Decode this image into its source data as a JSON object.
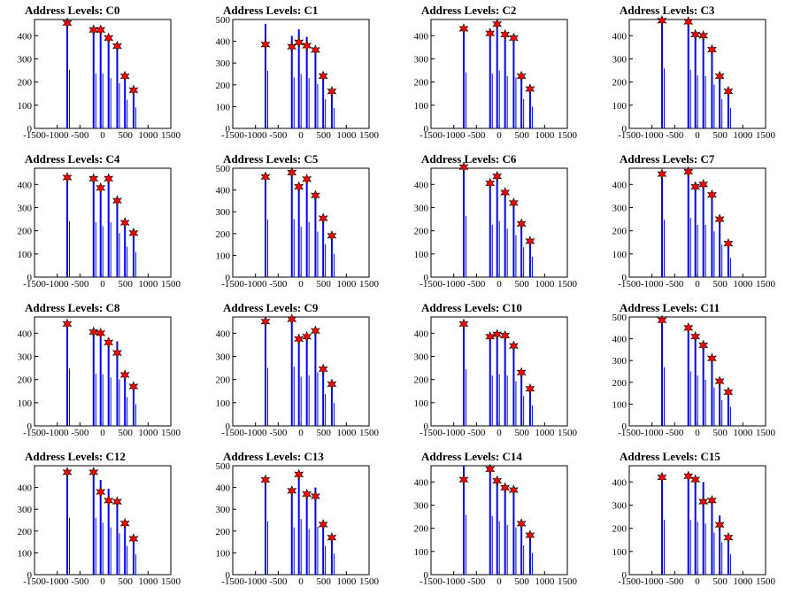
{
  "figure": {
    "bar_color": "#0000ff",
    "marker_color": "#ff0000",
    "x_ticks": [
      "-1500",
      "-1000",
      "-500",
      "0",
      "500",
      "1000",
      "1500"
    ],
    "xlim": [
      -1500,
      1500
    ]
  },
  "chart_data": [
    {
      "type": "bar",
      "title": "Address Levels: C0",
      "xlim": [
        -1500,
        1500
      ],
      "ylim": [
        0,
        470
      ],
      "y_ticks": [
        "0",
        "100",
        "200",
        "300",
        "400"
      ],
      "bars": [
        {
          "x": -780,
          "y": 460
        },
        {
          "x": -200,
          "y": 430
        },
        {
          "x": -45,
          "y": 430
        },
        {
          "x": 130,
          "y": 395
        },
        {
          "x": 320,
          "y": 355
        },
        {
          "x": 490,
          "y": 225
        },
        {
          "x": 680,
          "y": 165
        }
      ],
      "peaks": [
        {
          "x": -780,
          "y": 455
        },
        {
          "x": -200,
          "y": 425
        },
        {
          "x": -45,
          "y": 425
        },
        {
          "x": 130,
          "y": 390
        },
        {
          "x": 320,
          "y": 355
        },
        {
          "x": 490,
          "y": 225
        },
        {
          "x": 680,
          "y": 165
        }
      ]
    },
    {
      "type": "bar",
      "title": "Address Levels: C1",
      "xlim": [
        -1500,
        1500
      ],
      "ylim": [
        0,
        500
      ],
      "y_ticks": [
        "0",
        "100",
        "200",
        "300",
        "400",
        "500"
      ],
      "bars": [
        {
          "x": -780,
          "y": 480
        },
        {
          "x": -200,
          "y": 425
        },
        {
          "x": -45,
          "y": 455
        },
        {
          "x": 130,
          "y": 420
        },
        {
          "x": 320,
          "y": 370
        },
        {
          "x": 490,
          "y": 245
        },
        {
          "x": 680,
          "y": 170
        }
      ],
      "peaks": [
        {
          "x": -780,
          "y": 385
        },
        {
          "x": -200,
          "y": 375
        },
        {
          "x": -45,
          "y": 395
        },
        {
          "x": 130,
          "y": 380
        },
        {
          "x": 320,
          "y": 360
        },
        {
          "x": 490,
          "y": 240
        },
        {
          "x": 680,
          "y": 170
        }
      ]
    },
    {
      "type": "bar",
      "title": "Address Levels: C2",
      "xlim": [
        -1500,
        1500
      ],
      "ylim": [
        0,
        470
      ],
      "y_ticks": [
        "0",
        "100",
        "200",
        "300",
        "400"
      ],
      "bars": [
        {
          "x": -780,
          "y": 440
        },
        {
          "x": -200,
          "y": 430
        },
        {
          "x": -45,
          "y": 455
        },
        {
          "x": 130,
          "y": 410
        },
        {
          "x": 320,
          "y": 400
        },
        {
          "x": 490,
          "y": 230
        },
        {
          "x": 680,
          "y": 170
        }
      ],
      "peaks": [
        {
          "x": -780,
          "y": 430
        },
        {
          "x": -200,
          "y": 410
        },
        {
          "x": -45,
          "y": 450
        },
        {
          "x": 130,
          "y": 405
        },
        {
          "x": 320,
          "y": 390
        },
        {
          "x": 490,
          "y": 225
        },
        {
          "x": 680,
          "y": 170
        }
      ]
    },
    {
      "type": "bar",
      "title": "Address Levels: C3",
      "xlim": [
        -1500,
        1500
      ],
      "ylim": [
        0,
        470
      ],
      "y_ticks": [
        "0",
        "100",
        "200",
        "300",
        "400"
      ],
      "bars": [
        {
          "x": -780,
          "y": 470
        },
        {
          "x": -200,
          "y": 460
        },
        {
          "x": -45,
          "y": 415
        },
        {
          "x": 130,
          "y": 410
        },
        {
          "x": 320,
          "y": 345
        },
        {
          "x": 490,
          "y": 230
        },
        {
          "x": 680,
          "y": 160
        }
      ],
      "peaks": [
        {
          "x": -780,
          "y": 465
        },
        {
          "x": -200,
          "y": 460
        },
        {
          "x": -45,
          "y": 405
        },
        {
          "x": 130,
          "y": 400
        },
        {
          "x": 320,
          "y": 340
        },
        {
          "x": 490,
          "y": 225
        },
        {
          "x": 680,
          "y": 160
        }
      ]
    },
    {
      "type": "bar",
      "title": "Address Levels: C4",
      "xlim": [
        -1500,
        1500
      ],
      "ylim": [
        0,
        470
      ],
      "y_ticks": [
        "0",
        "100",
        "200",
        "300",
        "400"
      ],
      "bars": [
        {
          "x": -780,
          "y": 440
        },
        {
          "x": -200,
          "y": 430
        },
        {
          "x": -45,
          "y": 400
        },
        {
          "x": 130,
          "y": 430
        },
        {
          "x": 320,
          "y": 345
        },
        {
          "x": 490,
          "y": 240
        },
        {
          "x": 680,
          "y": 195
        }
      ],
      "peaks": [
        {
          "x": -780,
          "y": 430
        },
        {
          "x": -200,
          "y": 425
        },
        {
          "x": -45,
          "y": 385
        },
        {
          "x": 130,
          "y": 425
        },
        {
          "x": 320,
          "y": 330
        },
        {
          "x": 490,
          "y": 235
        },
        {
          "x": 680,
          "y": 190
        }
      ]
    },
    {
      "type": "bar",
      "title": "Address Levels: C5",
      "xlim": [
        -1500,
        1500
      ],
      "ylim": [
        0,
        500
      ],
      "y_ticks": [
        "0",
        "100",
        "200",
        "300",
        "400",
        "500"
      ],
      "bars": [
        {
          "x": -780,
          "y": 480
        },
        {
          "x": -200,
          "y": 485
        },
        {
          "x": -45,
          "y": 420
        },
        {
          "x": 130,
          "y": 460
        },
        {
          "x": 320,
          "y": 380
        },
        {
          "x": 490,
          "y": 275
        },
        {
          "x": 680,
          "y": 195
        }
      ],
      "peaks": [
        {
          "x": -780,
          "y": 460
        },
        {
          "x": -200,
          "y": 480
        },
        {
          "x": -45,
          "y": 415
        },
        {
          "x": 130,
          "y": 450
        },
        {
          "x": 320,
          "y": 375
        },
        {
          "x": 490,
          "y": 270
        },
        {
          "x": 680,
          "y": 190
        }
      ]
    },
    {
      "type": "bar",
      "title": "Address Levels: C6",
      "xlim": [
        -1500,
        1500
      ],
      "ylim": [
        0,
        470
      ],
      "y_ticks": [
        "0",
        "100",
        "200",
        "300",
        "400"
      ],
      "bars": [
        {
          "x": -780,
          "y": 480
        },
        {
          "x": -200,
          "y": 410
        },
        {
          "x": -45,
          "y": 440
        },
        {
          "x": 130,
          "y": 380
        },
        {
          "x": 320,
          "y": 330
        },
        {
          "x": 490,
          "y": 235
        },
        {
          "x": 680,
          "y": 160
        }
      ],
      "peaks": [
        {
          "x": -780,
          "y": 475
        },
        {
          "x": -200,
          "y": 405
        },
        {
          "x": -45,
          "y": 435
        },
        {
          "x": 130,
          "y": 365
        },
        {
          "x": 320,
          "y": 320
        },
        {
          "x": 490,
          "y": 230
        },
        {
          "x": 680,
          "y": 155
        }
      ]
    },
    {
      "type": "bar",
      "title": "Address Levels: C7",
      "xlim": [
        -1500,
        1500
      ],
      "ylim": [
        0,
        470
      ],
      "y_ticks": [
        "0",
        "100",
        "200",
        "300",
        "400"
      ],
      "bars": [
        {
          "x": -780,
          "y": 450
        },
        {
          "x": -200,
          "y": 465
        },
        {
          "x": -45,
          "y": 410
        },
        {
          "x": 130,
          "y": 410
        },
        {
          "x": 320,
          "y": 360
        },
        {
          "x": 490,
          "y": 255
        },
        {
          "x": 680,
          "y": 150
        }
      ],
      "peaks": [
        {
          "x": -780,
          "y": 445
        },
        {
          "x": -200,
          "y": 455
        },
        {
          "x": -45,
          "y": 390
        },
        {
          "x": 130,
          "y": 400
        },
        {
          "x": 320,
          "y": 355
        },
        {
          "x": 490,
          "y": 250
        },
        {
          "x": 680,
          "y": 145
        }
      ]
    },
    {
      "type": "bar",
      "title": "Address Levels: C8",
      "xlim": [
        -1500,
        1500
      ],
      "ylim": [
        0,
        470
      ],
      "y_ticks": [
        "0",
        "100",
        "200",
        "300",
        "400"
      ],
      "bars": [
        {
          "x": -780,
          "y": 450
        },
        {
          "x": -200,
          "y": 410
        },
        {
          "x": -45,
          "y": 405
        },
        {
          "x": 130,
          "y": 380
        },
        {
          "x": 320,
          "y": 365
        },
        {
          "x": 490,
          "y": 225
        },
        {
          "x": 680,
          "y": 170
        }
      ],
      "peaks": [
        {
          "x": -780,
          "y": 440
        },
        {
          "x": -200,
          "y": 405
        },
        {
          "x": -45,
          "y": 400
        },
        {
          "x": 130,
          "y": 360
        },
        {
          "x": 320,
          "y": 315
        },
        {
          "x": 490,
          "y": 220
        },
        {
          "x": 680,
          "y": 170
        }
      ]
    },
    {
      "type": "bar",
      "title": "Address Levels: C9",
      "xlim": [
        -1500,
        1500
      ],
      "ylim": [
        0,
        470
      ],
      "y_ticks": [
        "0",
        "100",
        "200",
        "300",
        "400"
      ],
      "bars": [
        {
          "x": -780,
          "y": 455
        },
        {
          "x": -200,
          "y": 465
        },
        {
          "x": -45,
          "y": 385
        },
        {
          "x": 130,
          "y": 395
        },
        {
          "x": 320,
          "y": 420
        },
        {
          "x": 490,
          "y": 250
        },
        {
          "x": 680,
          "y": 180
        }
      ],
      "peaks": [
        {
          "x": -780,
          "y": 450
        },
        {
          "x": -200,
          "y": 460
        },
        {
          "x": -45,
          "y": 375
        },
        {
          "x": 130,
          "y": 385
        },
        {
          "x": 320,
          "y": 410
        },
        {
          "x": 490,
          "y": 245
        },
        {
          "x": 680,
          "y": 180
        }
      ]
    },
    {
      "type": "bar",
      "title": "Address Levels: C10",
      "xlim": [
        -1500,
        1500
      ],
      "ylim": [
        0,
        470
      ],
      "y_ticks": [
        "0",
        "100",
        "200",
        "300",
        "400"
      ],
      "bars": [
        {
          "x": -780,
          "y": 445
        },
        {
          "x": -200,
          "y": 395
        },
        {
          "x": -45,
          "y": 405
        },
        {
          "x": 130,
          "y": 395
        },
        {
          "x": 320,
          "y": 350
        },
        {
          "x": 490,
          "y": 235
        },
        {
          "x": 680,
          "y": 160
        }
      ],
      "peaks": [
        {
          "x": -780,
          "y": 440
        },
        {
          "x": -200,
          "y": 385
        },
        {
          "x": -45,
          "y": 395
        },
        {
          "x": 130,
          "y": 390
        },
        {
          "x": 320,
          "y": 345
        },
        {
          "x": 490,
          "y": 230
        },
        {
          "x": 680,
          "y": 160
        }
      ]
    },
    {
      "type": "bar",
      "title": "Address Levels: C11",
      "xlim": [
        -1500,
        1500
      ],
      "ylim": [
        0,
        500
      ],
      "y_ticks": [
        "0",
        "100",
        "200",
        "300",
        "400",
        "500"
      ],
      "bars": [
        {
          "x": -780,
          "y": 490
        },
        {
          "x": -200,
          "y": 455
        },
        {
          "x": -45,
          "y": 420
        },
        {
          "x": 130,
          "y": 385
        },
        {
          "x": 320,
          "y": 320
        },
        {
          "x": 490,
          "y": 215
        },
        {
          "x": 680,
          "y": 160
        }
      ],
      "peaks": [
        {
          "x": -780,
          "y": 485
        },
        {
          "x": -200,
          "y": 450
        },
        {
          "x": -45,
          "y": 410
        },
        {
          "x": 130,
          "y": 370
        },
        {
          "x": 320,
          "y": 310
        },
        {
          "x": 490,
          "y": 205
        },
        {
          "x": 680,
          "y": 155
        }
      ]
    },
    {
      "type": "bar",
      "title": "Address Levels: C12",
      "xlim": [
        -1500,
        1500
      ],
      "ylim": [
        0,
        500
      ],
      "y_ticks": [
        "0",
        "100",
        "200",
        "300",
        "400"
      ],
      "bars": [
        {
          "x": -780,
          "y": 475
        },
        {
          "x": -200,
          "y": 475
        },
        {
          "x": -45,
          "y": 435
        },
        {
          "x": 130,
          "y": 395
        },
        {
          "x": 320,
          "y": 345
        },
        {
          "x": 490,
          "y": 240
        },
        {
          "x": 680,
          "y": 170
        }
      ],
      "peaks": [
        {
          "x": -780,
          "y": 470
        },
        {
          "x": -200,
          "y": 470
        },
        {
          "x": -45,
          "y": 380
        },
        {
          "x": 130,
          "y": 340
        },
        {
          "x": 320,
          "y": 335
        },
        {
          "x": 490,
          "y": 235
        },
        {
          "x": 680,
          "y": 165
        }
      ]
    },
    {
      "type": "bar",
      "title": "Address Levels: C13",
      "xlim": [
        -1500,
        1500
      ],
      "ylim": [
        0,
        500
      ],
      "y_ticks": [
        "0",
        "100",
        "200",
        "300",
        "400",
        "500"
      ],
      "bars": [
        {
          "x": -780,
          "y": 445
        },
        {
          "x": -200,
          "y": 395
        },
        {
          "x": -45,
          "y": 465
        },
        {
          "x": 130,
          "y": 380
        },
        {
          "x": 320,
          "y": 400
        },
        {
          "x": 490,
          "y": 240
        },
        {
          "x": 680,
          "y": 175
        }
      ],
      "peaks": [
        {
          "x": -780,
          "y": 435
        },
        {
          "x": -200,
          "y": 385
        },
        {
          "x": -45,
          "y": 460
        },
        {
          "x": 130,
          "y": 370
        },
        {
          "x": 320,
          "y": 360
        },
        {
          "x": 490,
          "y": 230
        },
        {
          "x": 680,
          "y": 170
        }
      ]
    },
    {
      "type": "bar",
      "title": "Address Levels: C14",
      "xlim": [
        -1500,
        1500
      ],
      "ylim": [
        0,
        470
      ],
      "y_ticks": [
        "0",
        "100",
        "200",
        "300",
        "400"
      ],
      "bars": [
        {
          "x": -780,
          "y": 470
        },
        {
          "x": -200,
          "y": 460
        },
        {
          "x": -45,
          "y": 420
        },
        {
          "x": 130,
          "y": 390
        },
        {
          "x": 320,
          "y": 370
        },
        {
          "x": 490,
          "y": 230
        },
        {
          "x": 680,
          "y": 170
        }
      ],
      "peaks": [
        {
          "x": -780,
          "y": 410
        },
        {
          "x": -200,
          "y": 455
        },
        {
          "x": -45,
          "y": 405
        },
        {
          "x": 130,
          "y": 375
        },
        {
          "x": 320,
          "y": 365
        },
        {
          "x": 490,
          "y": 220
        },
        {
          "x": 680,
          "y": 170
        }
      ]
    },
    {
      "type": "bar",
      "title": "Address Levels: C15",
      "xlim": [
        -1500,
        1500
      ],
      "ylim": [
        0,
        470
      ],
      "y_ticks": [
        "0",
        "100",
        "200",
        "300",
        "400"
      ],
      "bars": [
        {
          "x": -780,
          "y": 430
        },
        {
          "x": -200,
          "y": 430
        },
        {
          "x": -45,
          "y": 415
        },
        {
          "x": 130,
          "y": 400
        },
        {
          "x": 320,
          "y": 330
        },
        {
          "x": 490,
          "y": 255
        },
        {
          "x": 680,
          "y": 160
        }
      ],
      "peaks": [
        {
          "x": -780,
          "y": 420
        },
        {
          "x": -200,
          "y": 425
        },
        {
          "x": -45,
          "y": 410
        },
        {
          "x": 130,
          "y": 315
        },
        {
          "x": 320,
          "y": 320
        },
        {
          "x": 490,
          "y": 215
        },
        {
          "x": 680,
          "y": 160
        }
      ]
    }
  ]
}
